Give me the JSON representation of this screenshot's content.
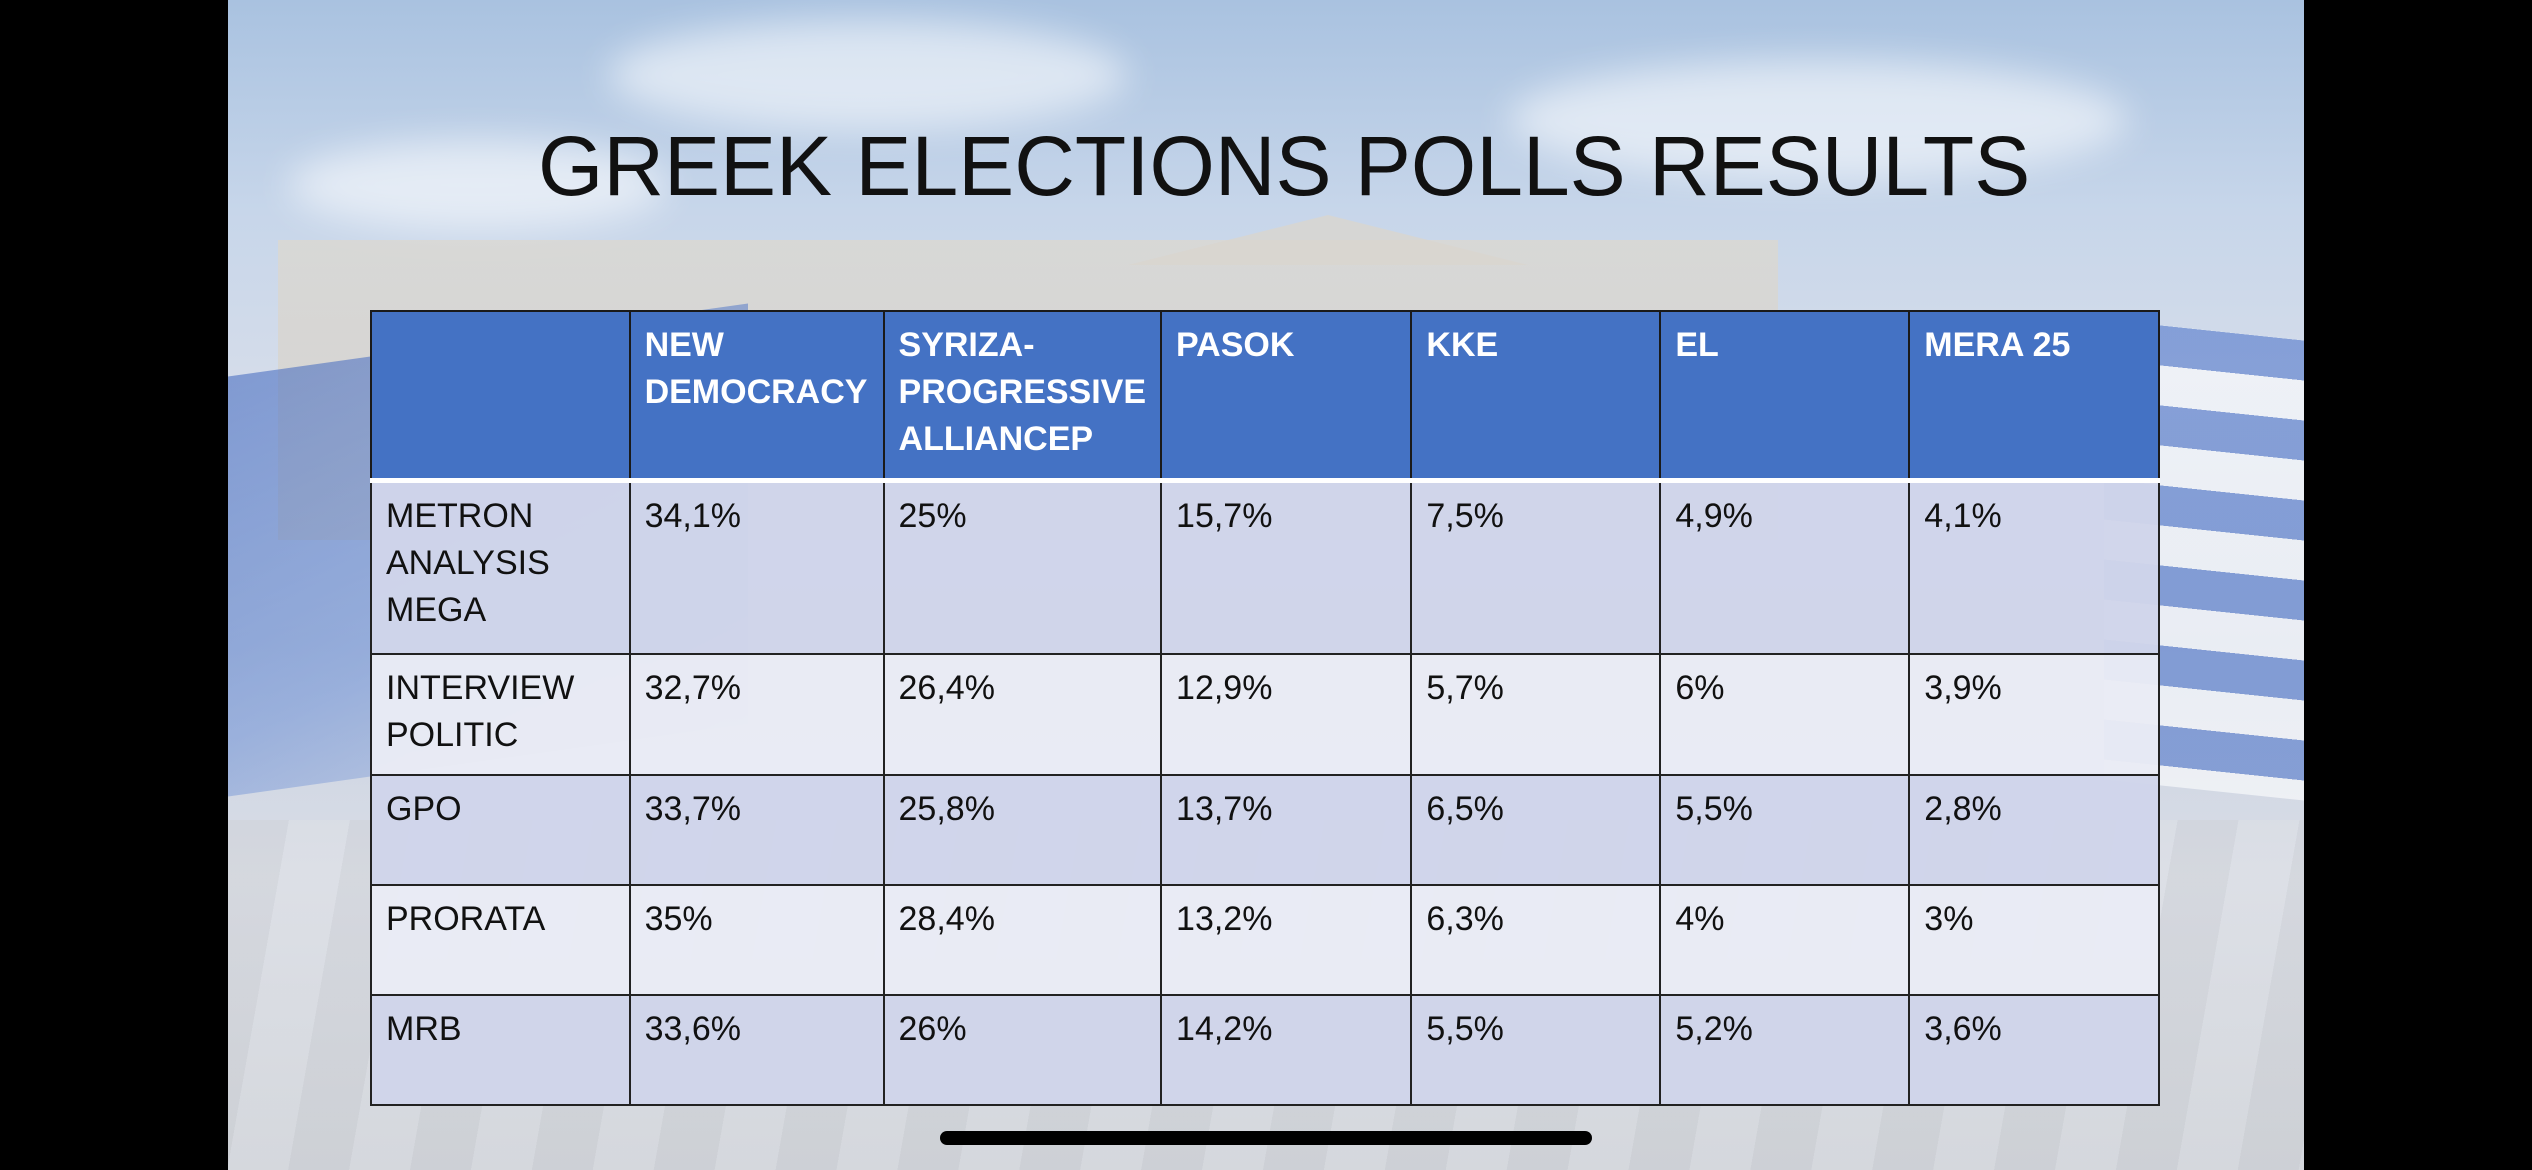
{
  "slide": {
    "title": "GREEK ELECTIONS POLLS RESULTS"
  },
  "table": {
    "headers": [
      "",
      "NEW DEMOCRACY",
      "SYRIZA-PROGRESSIVE ALLIANCEP",
      "PASOK",
      "KKE",
      "EL",
      "MERA 25"
    ],
    "rows": [
      {
        "pollster": "METRON ANALYSIS MEGA",
        "values": [
          "34,1%",
          "25%",
          "15,7%",
          "7,5%",
          "4,9%",
          "4,1%"
        ]
      },
      {
        "pollster": "INTERVIEW POLITIC",
        "values": [
          "32,7%",
          "26,4%",
          "12,9%",
          "5,7%",
          "6%",
          "3,9%"
        ]
      },
      {
        "pollster": "GPO",
        "values": [
          "33,7%",
          "25,8%",
          "13,7%",
          "6,5%",
          "5,5%",
          "2,8%"
        ]
      },
      {
        "pollster": "PRORATA",
        "values": [
          "35%",
          "28,4%",
          "13,2%",
          "6,3%",
          "4%",
          "3%"
        ]
      },
      {
        "pollster": "MRB",
        "values": [
          "33,6%",
          "26%",
          "14,2%",
          "5,5%",
          "5,2%",
          "3,6%"
        ]
      }
    ]
  },
  "colors": {
    "header_bg": "#4472c4",
    "row_odd_bg": "#cfd5ea",
    "row_even_bg": "#e9ebf5"
  }
}
